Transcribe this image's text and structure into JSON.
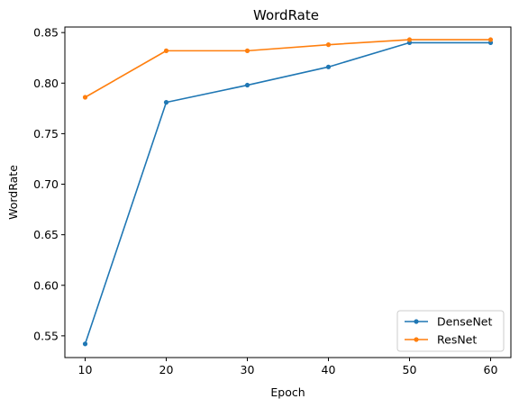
{
  "chart_data": {
    "type": "line",
    "title": "WordRate",
    "xlabel": "Epoch",
    "ylabel": "WordRate",
    "x": [
      10,
      20,
      30,
      40,
      50,
      60
    ],
    "xticks": [
      "10",
      "20",
      "30",
      "40",
      "50",
      "60"
    ],
    "yticks": [
      "0.55",
      "0.60",
      "0.65",
      "0.70",
      "0.75",
      "0.80",
      "0.85"
    ],
    "xlim": [
      7.5,
      62.5
    ],
    "ylim": [
      0.5285,
      0.8555
    ],
    "grid": false,
    "legend_position": "lower-right",
    "series": [
      {
        "name": "DenseNet",
        "color": "#1f77b4",
        "marker": "circle",
        "values": [
          0.542,
          0.781,
          0.798,
          0.816,
          0.84,
          0.84
        ]
      },
      {
        "name": "ResNet",
        "color": "#ff7f0e",
        "marker": "circle",
        "values": [
          0.786,
          0.832,
          0.832,
          0.838,
          0.843,
          0.843
        ]
      }
    ]
  }
}
